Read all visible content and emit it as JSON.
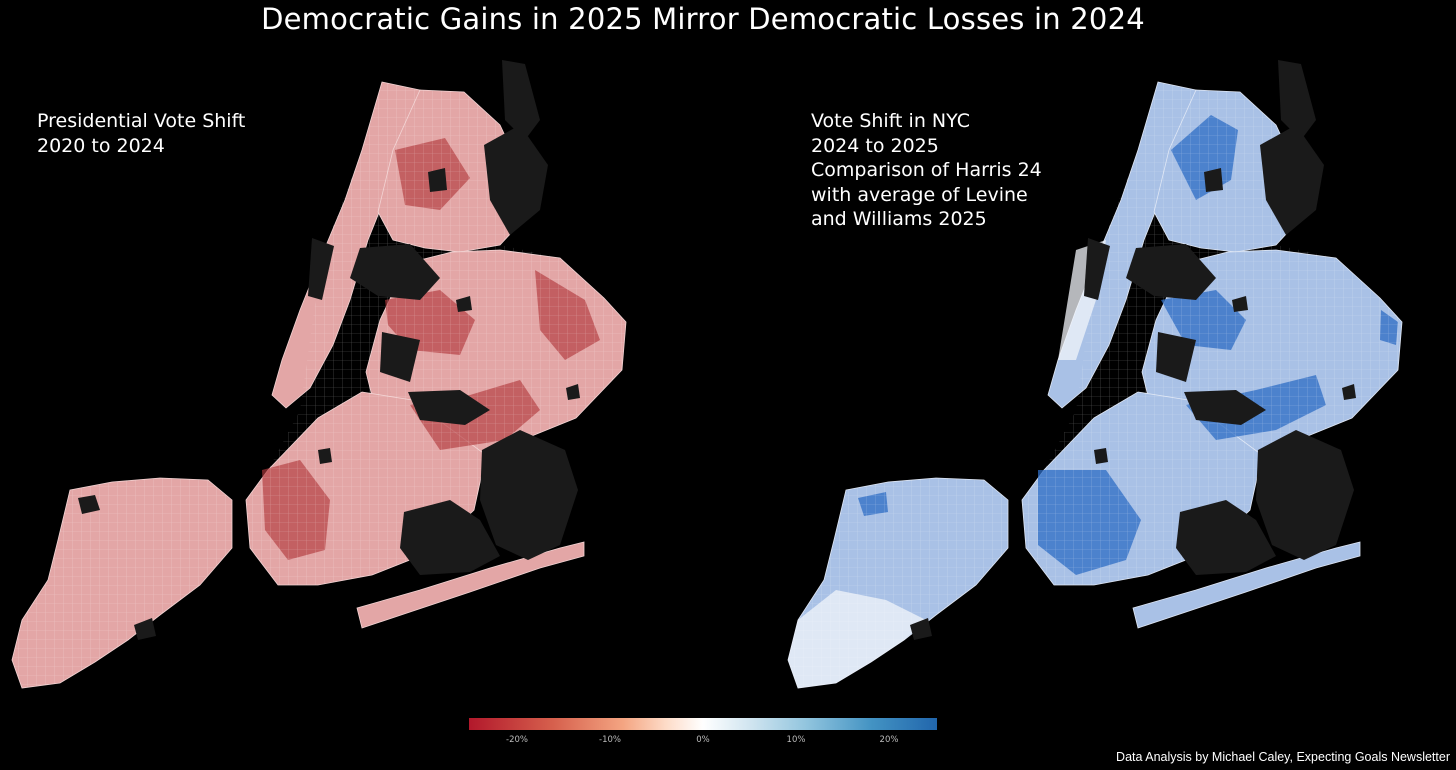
{
  "title": "Democratic Gains in 2025 Mirror Democratic Losses in 2024",
  "left_panel": {
    "label_lines": [
      "Presidential Vote Shift",
      "2020 to 2024"
    ],
    "borough_fill": "#e3a6a6"
  },
  "right_panel": {
    "label_lines": [
      "Vote Shift in NYC",
      "2024 to 2025",
      "Comparison of Harris 24",
      "with average of Levine",
      "and Williams 2025"
    ],
    "borough_fill": "#a9c1e6"
  },
  "legend": {
    "ticks": [
      "-20%",
      "-10%",
      "0%",
      "10%",
      "20%"
    ],
    "tick_values": [
      -20,
      -10,
      0,
      10,
      20
    ],
    "range": [
      -25,
      25
    ],
    "colors": {
      "negative": "#b2182b",
      "zero": "#ffffff",
      "positive": "#2166ac"
    }
  },
  "credit": "Data Analysis by Michael Caley, Expecting Goals Newsletter"
}
